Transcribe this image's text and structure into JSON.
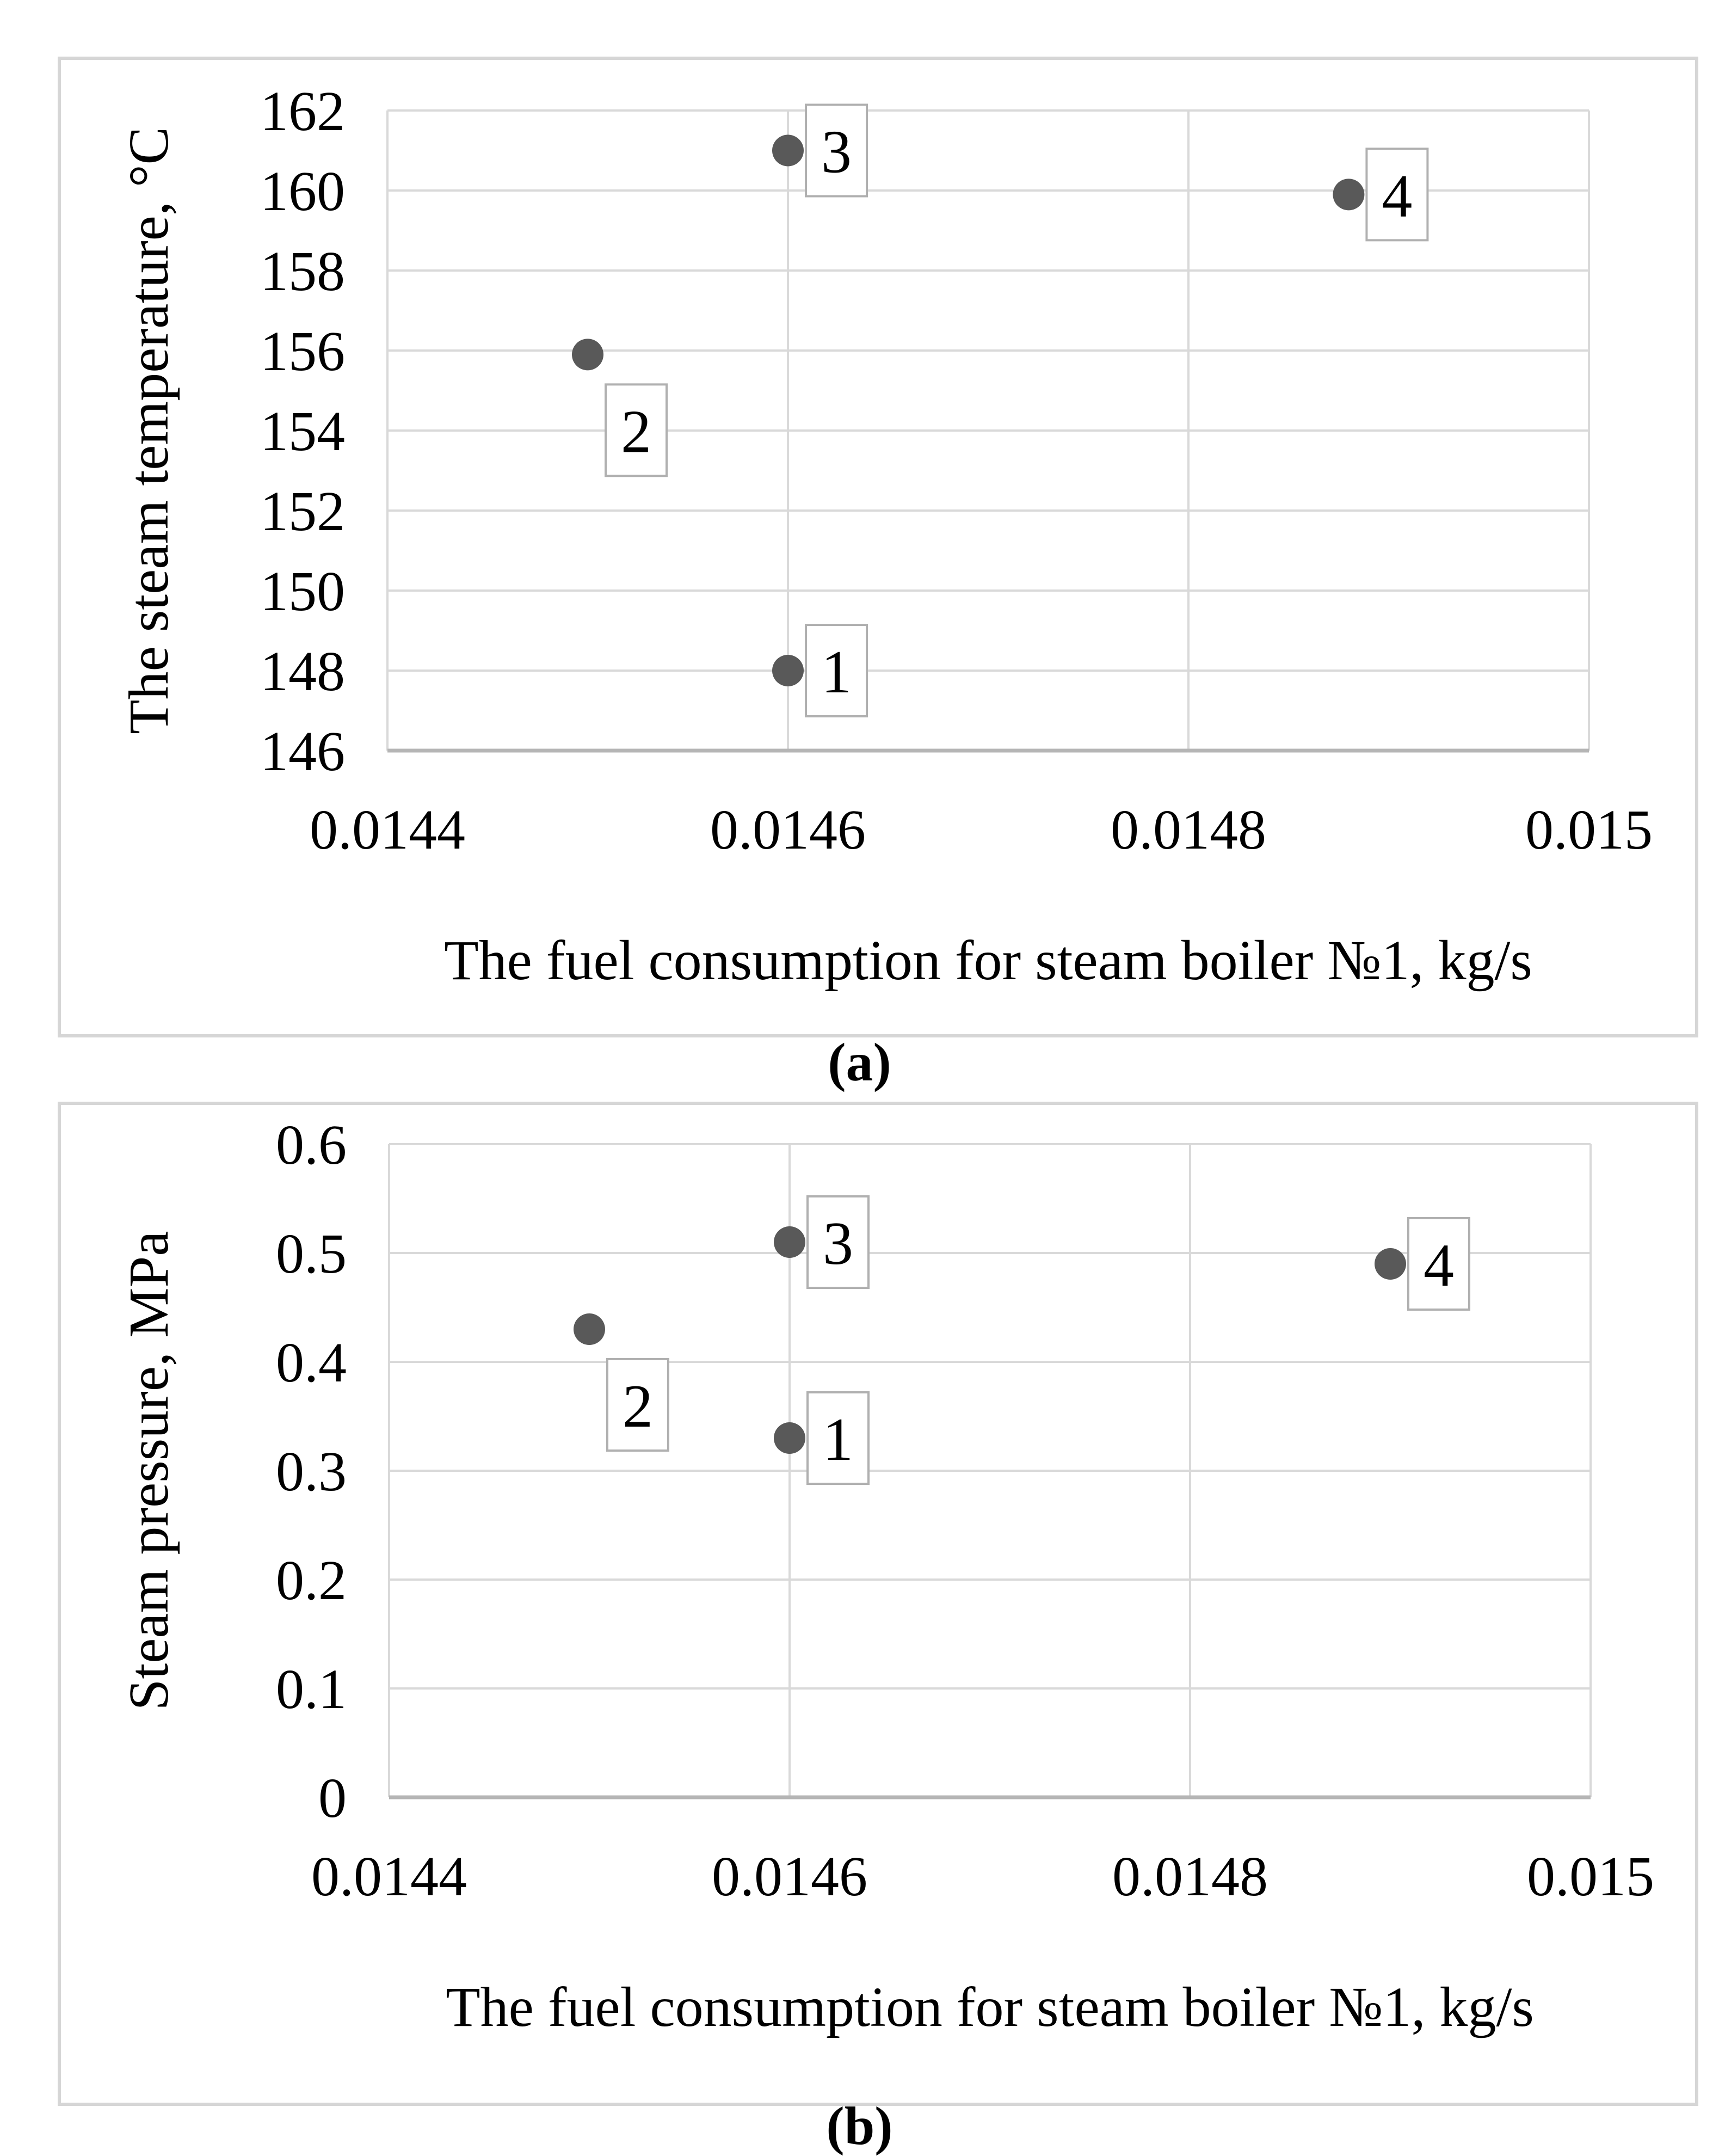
{
  "style": {
    "grid_color": "#d9d9d9",
    "axis_line_color": "#b5b5b5",
    "figure_border_color": "#d6d6d6",
    "point_color": "#595959",
    "label_box_fill": "#ffffff",
    "label_box_border": "#b0b0b0",
    "text_color": "#000000",
    "background": "#ffffff"
  },
  "chart_data": [
    {
      "type": "scatter",
      "panel": "a",
      "caption": "(a)",
      "title": "",
      "xlabel": "The fuel consumption for steam boiler №1, kg/s",
      "ylabel": "The steam temperature, °C",
      "xlim": [
        0.0144,
        0.015
      ],
      "ylim": [
        146,
        162
      ],
      "x_ticks": [
        0.0144,
        0.0146,
        0.0148,
        0.015
      ],
      "x_tick_labels": [
        "0.0144",
        "0.0146",
        "0.0148",
        "0.015"
      ],
      "y_ticks": [
        146,
        148,
        150,
        152,
        154,
        156,
        158,
        160,
        162
      ],
      "y_tick_labels": [
        "146",
        "148",
        "150",
        "152",
        "154",
        "156",
        "158",
        "160",
        "162"
      ],
      "grid": true,
      "legend": "none",
      "marker": "circle",
      "points": [
        {
          "label": "1",
          "x": 0.0146,
          "y": 148,
          "label_side": "right"
        },
        {
          "label": "2",
          "x": 0.0145,
          "y": 155.9,
          "label_side": "below-right"
        },
        {
          "label": "3",
          "x": 0.0146,
          "y": 161,
          "label_side": "right"
        },
        {
          "label": "4",
          "x": 0.01488,
          "y": 159.9,
          "label_side": "right"
        }
      ]
    },
    {
      "type": "scatter",
      "panel": "b",
      "caption": "(b)",
      "title": "",
      "xlabel": "The fuel consumption for steam boiler №1, kg/s",
      "ylabel": "Steam pressure, MPa",
      "xlim": [
        0.0144,
        0.015
      ],
      "ylim": [
        0,
        0.6
      ],
      "x_ticks": [
        0.0144,
        0.0146,
        0.0148,
        0.015
      ],
      "x_tick_labels": [
        "0.0144",
        "0.0146",
        "0.0148",
        "0.015"
      ],
      "y_ticks": [
        0,
        0.1,
        0.2,
        0.3,
        0.4,
        0.5,
        0.6
      ],
      "y_tick_labels": [
        "0",
        "0.1",
        "0.2",
        "0.3",
        "0.4",
        "0.5",
        "0.6"
      ],
      "grid": true,
      "legend": "none",
      "marker": "circle",
      "points": [
        {
          "label": "1",
          "x": 0.0146,
          "y": 0.33,
          "label_side": "right"
        },
        {
          "label": "2",
          "x": 0.0145,
          "y": 0.43,
          "label_side": "below-right"
        },
        {
          "label": "3",
          "x": 0.0146,
          "y": 0.51,
          "label_side": "right"
        },
        {
          "label": "4",
          "x": 0.0149,
          "y": 0.49,
          "label_side": "right"
        }
      ]
    }
  ]
}
